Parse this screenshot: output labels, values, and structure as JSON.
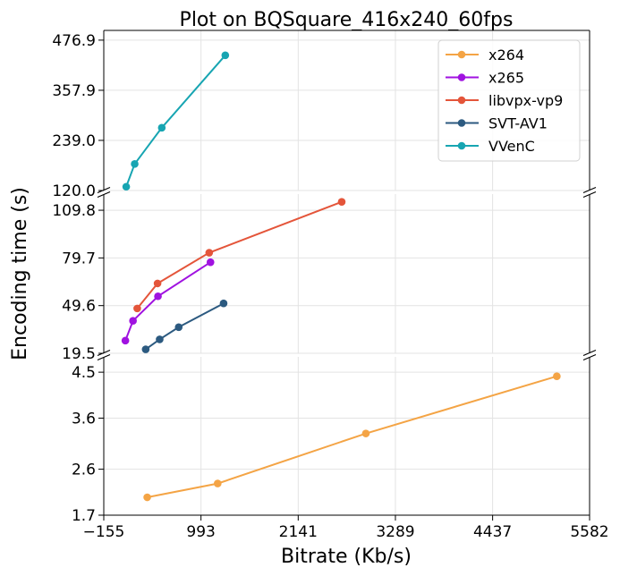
{
  "chart_data": {
    "type": "line",
    "title": "Plot on BQSquare_416x240_60fps",
    "xlabel": "Bitrate (Kb/s)",
    "ylabel": "Encoding time (s)",
    "xlim": [
      -155,
      5582
    ],
    "x_ticks": [
      "−155",
      "993",
      "2141",
      "3289",
      "4437",
      "5582"
    ],
    "grid": true,
    "legend_position": "top-right",
    "broken_y_axis": true,
    "panels": [
      {
        "ylim": [
          120.0,
          500.0
        ],
        "y_ticks": [
          "120.0",
          "239.0",
          "357.9",
          "476.9"
        ]
      },
      {
        "ylim": [
          19.5,
          120.0
        ],
        "y_ticks": [
          "19.5",
          "49.6",
          "79.7",
          "109.8"
        ]
      },
      {
        "ylim": [
          1.7,
          4.8
        ],
        "y_ticks": [
          "1.7",
          "2.6",
          "3.6",
          "4.5"
        ]
      }
    ],
    "series": [
      {
        "name": "x264",
        "color": "#f4a445",
        "panel": 2,
        "x": [
          358,
          1190,
          2940,
          5195
        ],
        "y": [
          2.05,
          2.32,
          3.3,
          4.42
        ]
      },
      {
        "name": "x265",
        "color": "#a012e0",
        "panel": 1,
        "x": [
          100,
          190,
          485,
          1105
        ],
        "y": [
          27.5,
          40.0,
          55.5,
          77.0
        ]
      },
      {
        "name": "libvpx-vp9",
        "color": "#e4553a",
        "panel": 1,
        "x": [
          240,
          480,
          1090,
          2655
        ],
        "y": [
          47.8,
          63.6,
          83.0,
          115.1
        ]
      },
      {
        "name": "SVT-AV1",
        "color": "#2c5a80",
        "panel": 1,
        "x": [
          340,
          505,
          730,
          1260
        ],
        "y": [
          22.0,
          28.3,
          36.0,
          51.0
        ]
      },
      {
        "name": "VVenC",
        "color": "#17a5b2",
        "panel": 0,
        "x": [
          110,
          210,
          530,
          1280
        ],
        "y": [
          129.0,
          183.0,
          269.0,
          441.0
        ]
      }
    ]
  }
}
